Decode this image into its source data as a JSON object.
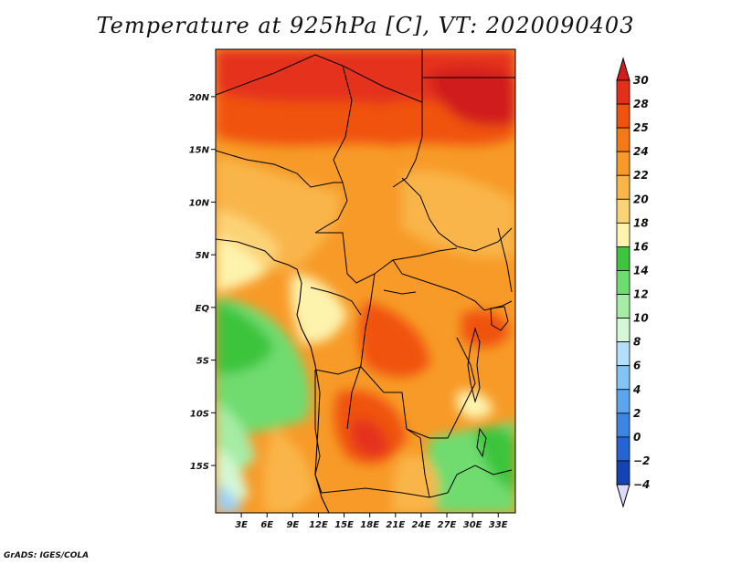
{
  "title": "Temperature at 925hPa [C], VT: 2020090403",
  "credit": "GrADS: IGES/COLA",
  "map": {
    "lon_range": [
      0,
      35
    ],
    "lat_range": [
      -19.5,
      24.5
    ],
    "lat_ticks": [
      {
        "value": 20,
        "label": "20N"
      },
      {
        "value": 15,
        "label": "15N"
      },
      {
        "value": 10,
        "label": "10N"
      },
      {
        "value": 5,
        "label": "5N"
      },
      {
        "value": 0,
        "label": "EQ"
      },
      {
        "value": -5,
        "label": "5S"
      },
      {
        "value": -10,
        "label": "10S"
      },
      {
        "value": -15,
        "label": "15S"
      }
    ],
    "lon_ticks": [
      {
        "value": 3,
        "label": "3E"
      },
      {
        "value": 6,
        "label": "6E"
      },
      {
        "value": 9,
        "label": "9E"
      },
      {
        "value": 12,
        "label": "12E"
      },
      {
        "value": 15,
        "label": "15E"
      },
      {
        "value": 18,
        "label": "18E"
      },
      {
        "value": 21,
        "label": "21E"
      },
      {
        "value": 24,
        "label": "24E"
      },
      {
        "value": 27,
        "label": "27E"
      },
      {
        "value": 30,
        "label": "30E"
      },
      {
        "value": 33,
        "label": "33E"
      }
    ]
  },
  "colorbar": {
    "levels": [
      {
        "value": "30",
        "color": "#e4301a"
      },
      {
        "value": "28",
        "color": "#f0520f"
      },
      {
        "value": "25",
        "color": "#f57a16"
      },
      {
        "value": "24",
        "color": "#f79a28"
      },
      {
        "value": "22",
        "color": "#f9b548"
      },
      {
        "value": "20",
        "color": "#fbd377"
      },
      {
        "value": "18",
        "color": "#fdf3ad"
      },
      {
        "value": "16",
        "color": "#3ec43e"
      },
      {
        "value": "14",
        "color": "#6fdc6f"
      },
      {
        "value": "12",
        "color": "#a5eca5"
      },
      {
        "value": "10",
        "color": "#d4f7d4"
      },
      {
        "value": "8",
        "color": "#b4dffa"
      },
      {
        "value": "6",
        "color": "#82c5f4"
      },
      {
        "value": "4",
        "color": "#5aa5ee"
      },
      {
        "value": "2",
        "color": "#3d85e3"
      },
      {
        "value": "0",
        "color": "#2464d3"
      },
      {
        "value": "−2",
        "color": "#1443b4"
      },
      {
        "value": "−4",
        "color": "#0d2287"
      }
    ],
    "top_color": "#d01e1e",
    "bottom_color": "#dcdcfa"
  }
}
